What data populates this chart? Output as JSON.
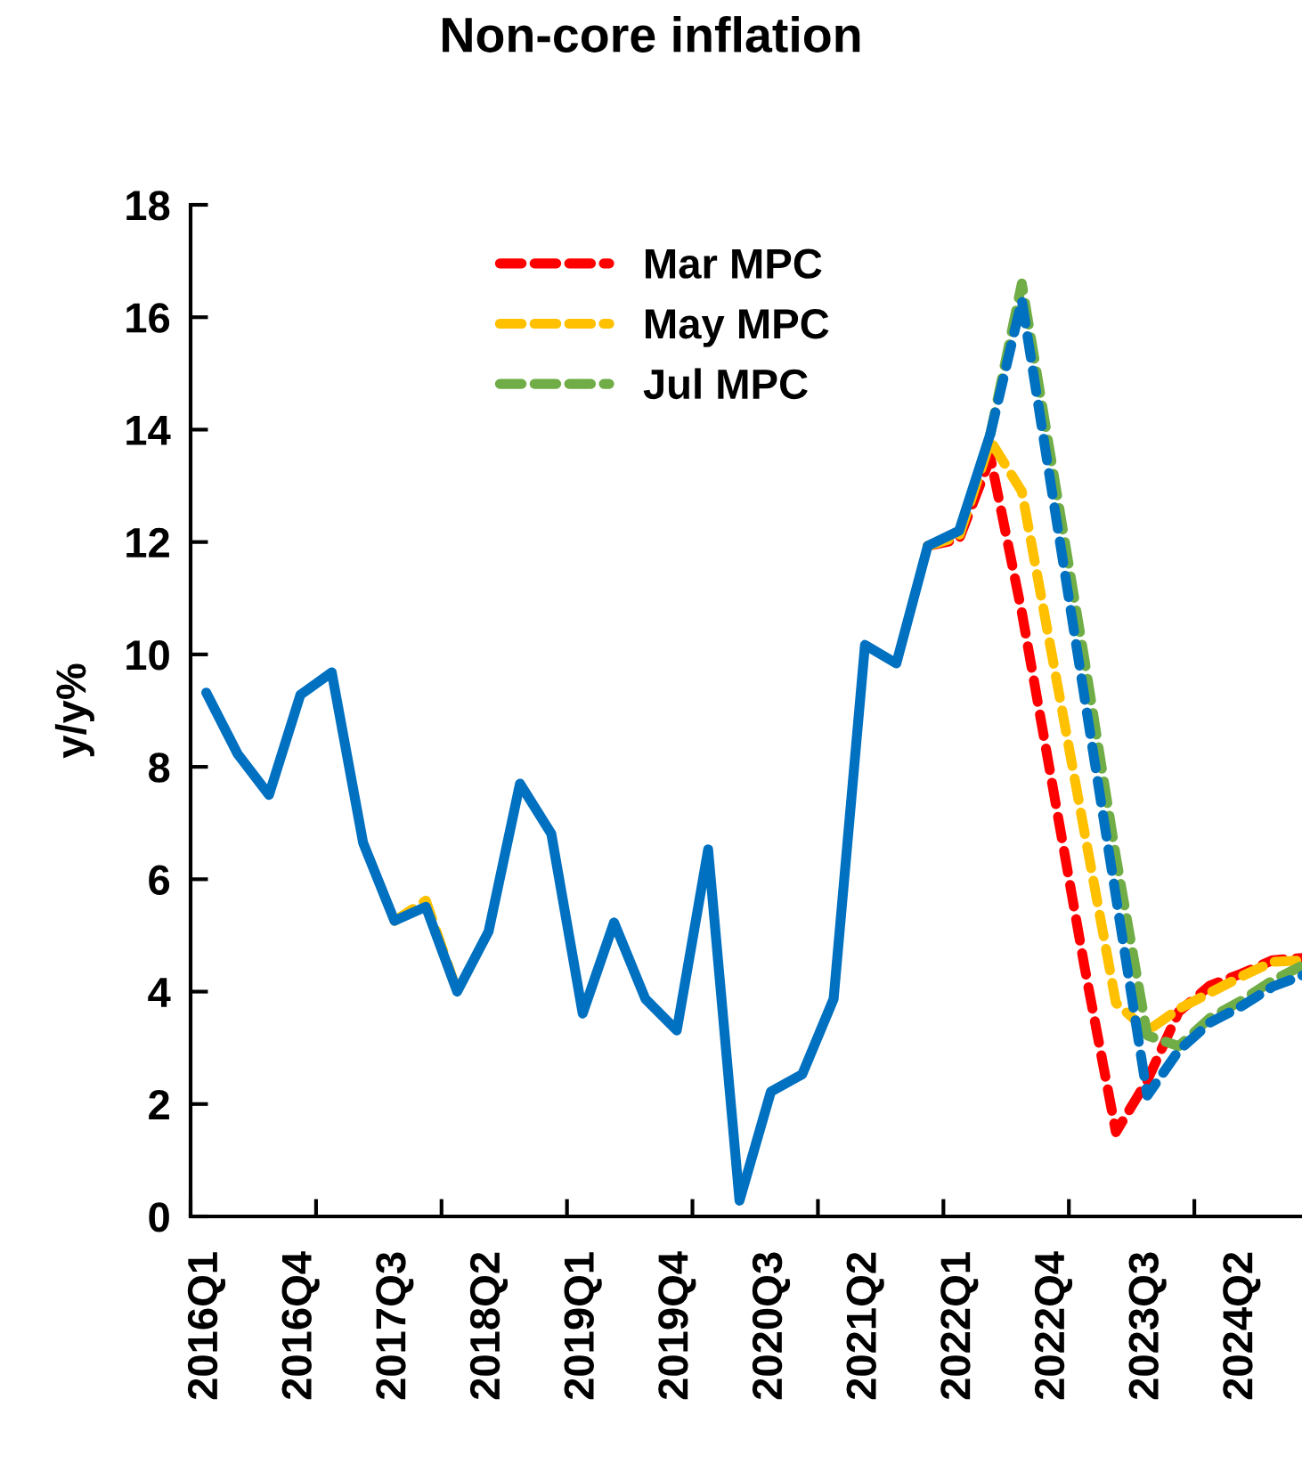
{
  "chart_data": {
    "type": "line",
    "title": "Non-core inflation",
    "ylabel": "y/y%",
    "categories": [
      "2016Q1",
      null,
      null,
      "2016Q4",
      null,
      null,
      "2017Q3",
      null,
      null,
      "2018Q2",
      null,
      null,
      "2019Q1",
      null,
      null,
      "2019Q4",
      null,
      null,
      "2020Q3",
      null,
      null,
      "2021Q2",
      null,
      null,
      "2022Q1",
      null,
      null,
      "2022Q4",
      null,
      null,
      "2023Q3",
      null,
      null,
      "2024Q2",
      null,
      null
    ],
    "series": [
      {
        "name": "Mar MPC",
        "color": "#ff0000",
        "line_style": "dashed",
        "values": [
          null,
          null,
          null,
          null,
          null,
          null,
          null,
          null,
          null,
          null,
          null,
          null,
          null,
          null,
          null,
          null,
          null,
          null,
          null,
          null,
          null,
          null,
          null,
          11.93,
          12.05,
          13.5,
          10.75,
          7.6,
          4.44,
          1.5,
          2.42,
          3.64,
          4.11,
          4.32,
          4.56,
          4.6
        ]
      },
      {
        "name": "May MPC",
        "color": "#ffc000",
        "line_style": "dashed",
        "values": [
          null,
          null,
          null,
          null,
          null,
          null,
          5.26,
          5.62,
          4.0,
          null,
          null,
          null,
          null,
          null,
          null,
          null,
          null,
          null,
          null,
          null,
          null,
          null,
          null,
          11.93,
          12.1,
          13.8,
          12.9,
          9.87,
          6.83,
          3.8,
          3.3,
          3.69,
          3.98,
          4.27,
          4.53,
          4.56
        ]
      },
      {
        "name": "Jul MPC",
        "color": "#70ad47",
        "line_style": "dashed",
        "values": [
          null,
          null,
          null,
          null,
          null,
          null,
          null,
          null,
          null,
          null,
          null,
          null,
          null,
          null,
          null,
          null,
          null,
          null,
          null,
          null,
          null,
          null,
          null,
          null,
          null,
          13.93,
          16.6,
          13.25,
          9.9,
          6.4,
          3.22,
          3.03,
          3.53,
          3.84,
          4.2,
          4.48
        ]
      },
      {
        "color": "#0070c0",
        "line_style": "dashed",
        "values": [
          null,
          null,
          null,
          null,
          null,
          null,
          null,
          null,
          null,
          null,
          null,
          null,
          null,
          null,
          null,
          null,
          null,
          null,
          null,
          null,
          null,
          null,
          null,
          null,
          null,
          13.93,
          16.3,
          12.76,
          9.23,
          5.69,
          2.15,
          2.95,
          3.45,
          3.74,
          4.09,
          4.3
        ]
      },
      {
        "color": "#0070c0",
        "line_style": "solid",
        "values": [
          9.32,
          8.23,
          7.5,
          9.28,
          9.68,
          6.65,
          5.26,
          5.51,
          4.0,
          5.07,
          7.7,
          6.81,
          3.61,
          5.23,
          3.87,
          3.31,
          6.53,
          0.28,
          2.22,
          2.53,
          3.87,
          10.17,
          9.84,
          11.93,
          12.2,
          13.93,
          null,
          null,
          null,
          null,
          null,
          null,
          null,
          null,
          null,
          null
        ]
      }
    ],
    "ylim": [
      0,
      18
    ],
    "yticks": [
      0,
      2,
      4,
      6,
      8,
      10,
      12,
      14,
      16,
      18
    ],
    "grid": false,
    "legend": "top",
    "marker": "none"
  }
}
